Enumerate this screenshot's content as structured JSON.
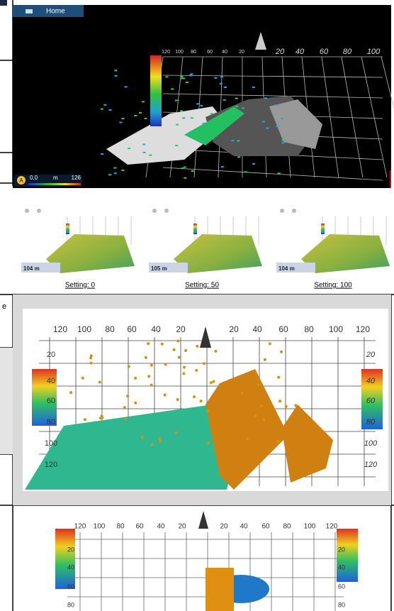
{
  "top_view": {
    "tab": "Home",
    "axis_labels": [
      "120",
      "100",
      "80",
      "60",
      "40",
      "20",
      "20",
      "40",
      "60",
      "80",
      "100"
    ],
    "readout": {
      "mode": "A",
      "min": "0,0",
      "unit": "m",
      "max": "126"
    }
  },
  "settings": [
    {
      "caption": "Setting: 0",
      "depth": "104 m"
    },
    {
      "caption": "Setting: 50",
      "depth": "105 m"
    },
    {
      "caption": "Setting: 100",
      "depth": "104 m"
    }
  ],
  "side_view": {
    "top_labels": [
      "120",
      "100",
      "80",
      "60",
      "40",
      "20",
      "20",
      "40",
      "60",
      "80",
      "100",
      "120"
    ],
    "left_labels": [
      "20",
      "40",
      "60",
      "80",
      "100",
      "120"
    ],
    "right_labels": [
      "20",
      "40",
      "60",
      "80",
      "100",
      "120"
    ]
  },
  "bottom_view": {
    "top_labels": [
      "120",
      "100",
      "80",
      "60",
      "40",
      "20",
      "20",
      "40",
      "60",
      "80",
      "100",
      "120"
    ],
    "left_labels": [
      "20",
      "40",
      "60",
      "80"
    ],
    "right_labels": [
      "20",
      "40",
      "60",
      "80"
    ]
  },
  "cropped_text": "e"
}
